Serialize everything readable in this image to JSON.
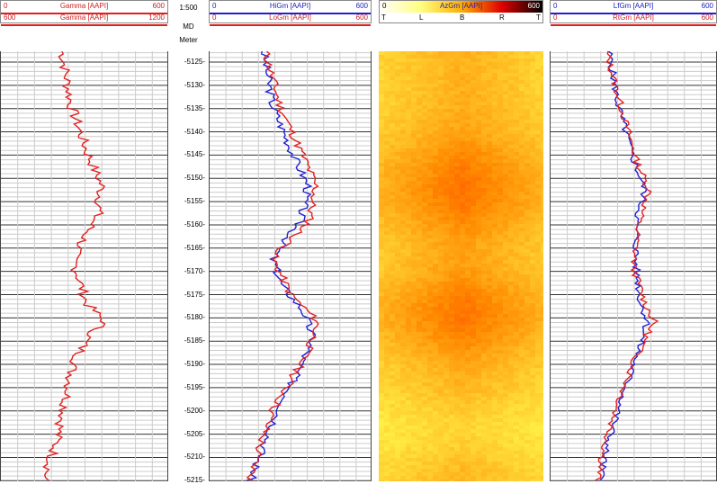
{
  "depth_header": {
    "scale": "1:500",
    "md": "MD",
    "unit": "Meter"
  },
  "track1": {
    "row1": {
      "min": "0",
      "name": "Gamma [AAPI]",
      "max": "600"
    },
    "row2": {
      "min": "600",
      "name": "Gamma [AAPI]",
      "max": "1200"
    }
  },
  "track2": {
    "row1": {
      "min": "0",
      "name": "HiGm [AAPI]",
      "max": "600"
    },
    "row2": {
      "min": "0",
      "name": "LoGm [AAPI]",
      "max": "600"
    }
  },
  "track3": {
    "row1": {
      "min": "0",
      "name": "AzGm [AAPI]",
      "max": "600"
    },
    "scale_labels": [
      "T",
      "L",
      "B",
      "R",
      "T"
    ]
  },
  "track4": {
    "row1": {
      "min": "0",
      "name": "LfGm [AAPI]",
      "max": "600"
    },
    "row2": {
      "min": "0",
      "name": "RtGm [AAPI]",
      "max": "600"
    }
  },
  "depths": [
    "-5125-",
    "-5130-",
    "-5135-",
    "-5140-",
    "-5145-",
    "-5150-",
    "-5155-",
    "-5160-",
    "-5165-",
    "-5170-",
    "-5175-",
    "-5180-",
    "-5185-",
    "-5190-",
    "-5195-",
    "-5200-",
    "-5205-",
    "-5210-",
    "-5215-"
  ],
  "colors": {
    "red": "#e02020",
    "blue": "#2020d0"
  }
}
